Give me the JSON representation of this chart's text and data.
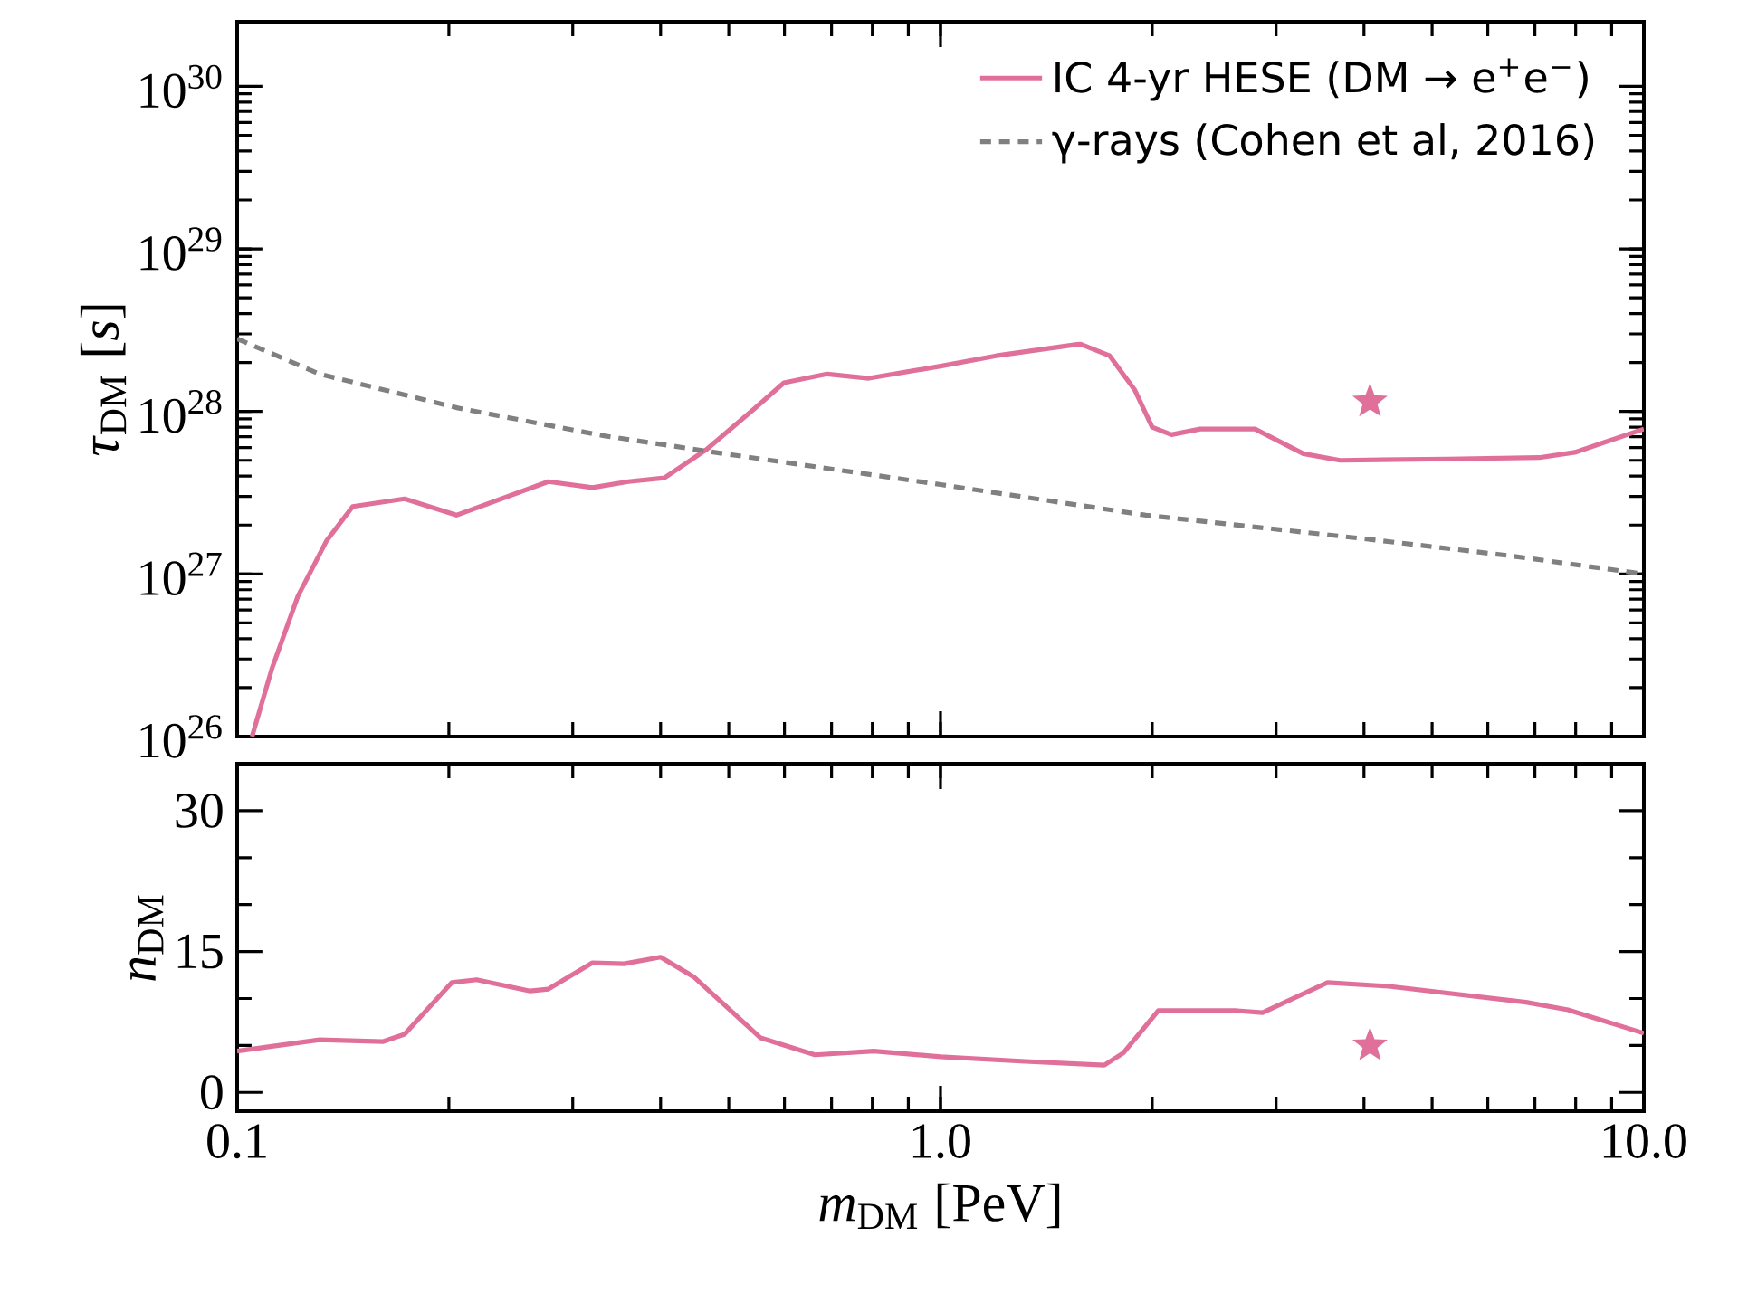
{
  "chart_data": [
    {
      "type": "line",
      "ylabel": "*τ*$_{DM}$ [*s*]",
      "log": "xy",
      "xlim": [
        0.1,
        10
      ],
      "ylim": [
        1e+26,
        2.5e+30
      ],
      "legend": "top right",
      "tick_labels": "y",
      "xticks": [
        {
          "value": 0.1,
          "label": null
        },
        {
          "value": 1,
          "label": null
        },
        {
          "value": 10,
          "label": null
        }
      ],
      "yticks": [
        {
          "value": 1e+26,
          "label": "10$^{26}$"
        },
        {
          "value": 1e+27,
          "label": "10$^{27}$"
        },
        {
          "value": 1e+28,
          "label": "10$^{28}$"
        },
        {
          "value": 1e+29,
          "label": "10$^{29}$"
        },
        {
          "value": 1e+30,
          "label": "10$^{30}$"
        }
      ],
      "series": [
        {
          "name": "IC 4-yr HESE (DM → e$^{+}$e$^{−}$)",
          "color": "#e07099",
          "line_style": "solid",
          "x": [
            0.105,
            0.112,
            0.122,
            0.134,
            0.146,
            0.173,
            0.205,
            0.277,
            0.32,
            0.36,
            0.405,
            0.464,
            0.545,
            0.599,
            0.69,
            0.791,
            1.0,
            1.2,
            1.58,
            1.74,
            1.89,
            2.0,
            2.13,
            2.34,
            2.8,
            3.28,
            3.7,
            5.27,
            7.1,
            7.98,
            10
          ],
          "values": [
            1e+26,
            2.6e+26,
            7.3e+26,
            1.6e+27,
            2.6e+27,
            2.9e+27,
            2.3e+27,
            3.7e+27,
            3.4e+27,
            3.7e+27,
            3.9e+27,
            5.8e+27,
            1.05e+28,
            1.5e+28,
            1.7e+28,
            1.6e+28,
            1.9e+28,
            2.2e+28,
            2.6e+28,
            2.2e+28,
            1.35e+28,
            8e+27,
            7.2e+27,
            7.8e+27,
            7.8e+27,
            5.5e+27,
            5e+27,
            5.1e+27,
            5.2e+27,
            5.6e+27,
            7.8e+27
          ]
        },
        {
          "name": "γ-rays (Cohen et al, 2016)",
          "color": "#808080",
          "line_style": "dotted",
          "x": [
            0.1,
            0.131,
            0.206,
            0.331,
            0.492,
            1.0,
            1.96,
            3.99,
            6.4,
            10
          ],
          "values": [
            2.8e+28,
            1.7e+28,
            1.05e+28,
            7.1e+27,
            5.5e+27,
            3.55e+27,
            2.3e+27,
            1.65e+27,
            1.3e+27,
            1e+27
          ]
        },
        {
          "type": "scatter",
          "color": "#e07099",
          "marker": "star",
          "x": [
            4.08
          ],
          "values": [
            1.15e+28
          ]
        }
      ]
    },
    {
      "type": "line",
      "xlabel": "*m*$_{DM}$ [PeV]",
      "ylabel": "*n*$_{DM}$",
      "log": "x",
      "xlim": [
        0.1,
        10
      ],
      "ylim": [
        -2,
        35
      ],
      "xticks": [
        {
          "value": 0.1,
          "label": "0.1"
        },
        {
          "value": 1,
          "label": "1.0"
        },
        {
          "value": 10,
          "label": "10.0"
        }
      ],
      "yticks": [
        0,
        15,
        30
      ],
      "series": [
        {
          "color": "#e07099",
          "line_style": "solid",
          "x": [
            0.1,
            0.131,
            0.161,
            0.173,
            0.202,
            0.219,
            0.261,
            0.277,
            0.32,
            0.355,
            0.4,
            0.446,
            0.555,
            0.663,
            0.804,
            1.0,
            1.32,
            1.71,
            1.82,
            2.04,
            2.64,
            2.87,
            3.55,
            4.34,
            6.8,
            7.8,
            10
          ],
          "values": [
            4.4,
            5.6,
            5.4,
            6.2,
            11.7,
            12.0,
            10.8,
            11.0,
            13.8,
            13.7,
            14.4,
            12.3,
            5.8,
            4.0,
            4.4,
            3.8,
            3.3,
            2.9,
            4.2,
            8.7,
            8.7,
            8.5,
            11.7,
            11.3,
            9.6,
            8.8,
            6.3
          ]
        },
        {
          "type": "scatter",
          "color": "#e07099",
          "marker": "star",
          "x": [
            4.08
          ],
          "values": [
            5.0
          ]
        }
      ]
    }
  ]
}
